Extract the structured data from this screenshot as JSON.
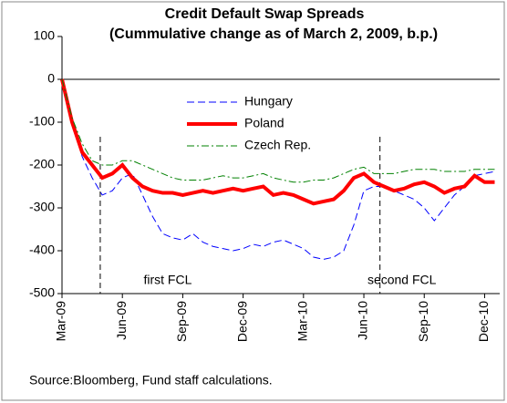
{
  "chart_data": {
    "type": "line",
    "title": "Credit Default  Swap Spreads",
    "subtitle": "(Cummulative change as of March 2, 2009, b.p.)",
    "source": "Source:Bloomberg, Fund staff calculations.",
    "annotations": [
      "first FCL",
      "second FCL"
    ],
    "categories": [
      "Mar-09",
      null,
      null,
      null,
      null,
      null,
      "Jun-09",
      null,
      null,
      null,
      null,
      null,
      "Sep-09",
      null,
      null,
      null,
      null,
      null,
      "Dec-09",
      null,
      null,
      null,
      null,
      null,
      "Mar-10",
      null,
      null,
      null,
      null,
      null,
      "Jun-10",
      null,
      null,
      null,
      null,
      null,
      "Sep-10",
      null,
      null,
      null,
      null,
      null,
      "Dec-10",
      null
    ],
    "series": [
      {
        "name": "Hungary",
        "color": "#0000ff",
        "line_style": "dashed",
        "values": [
          0,
          -90,
          -180,
          -230,
          -270,
          -260,
          -230,
          -220,
          -270,
          -320,
          -360,
          -370,
          -375,
          -360,
          -380,
          -390,
          -395,
          -400,
          -395,
          -385,
          -390,
          -380,
          -375,
          -385,
          -395,
          -415,
          -420,
          -415,
          -400,
          -340,
          -260,
          -250,
          -250,
          -260,
          -270,
          -280,
          -300,
          -330,
          -300,
          -270,
          -250,
          -225,
          -220,
          -215
        ]
      },
      {
        "name": "Poland",
        "color": "#ff0000",
        "line_style": "thick",
        "values": [
          0,
          -100,
          -170,
          -200,
          -230,
          -220,
          -200,
          -230,
          -250,
          -260,
          -265,
          -265,
          -270,
          -265,
          -260,
          -265,
          -260,
          -255,
          -260,
          -255,
          -250,
          -270,
          -265,
          -270,
          -280,
          -290,
          -285,
          -280,
          -260,
          -230,
          -220,
          -240,
          -250,
          -260,
          -255,
          -245,
          -240,
          -250,
          -265,
          -255,
          -250,
          -225,
          -240,
          -240
        ]
      },
      {
        "name": "Czech Rep.",
        "color": "#008000",
        "line_style": "dashdot",
        "values": [
          0,
          -90,
          -150,
          -190,
          -200,
          -200,
          -190,
          -190,
          -200,
          -210,
          -220,
          -230,
          -235,
          -235,
          -235,
          -230,
          -225,
          -230,
          -230,
          -225,
          -220,
          -230,
          -235,
          -240,
          -240,
          -235,
          -235,
          -230,
          -220,
          -210,
          -205,
          -220,
          -220,
          -220,
          -215,
          -210,
          -210,
          -210,
          -215,
          -215,
          -215,
          -210,
          -210,
          -210
        ]
      }
    ],
    "ylim": [
      -500,
      100
    ],
    "yticks": [
      -500,
      -400,
      -300,
      -200,
      -100,
      0,
      100
    ]
  }
}
